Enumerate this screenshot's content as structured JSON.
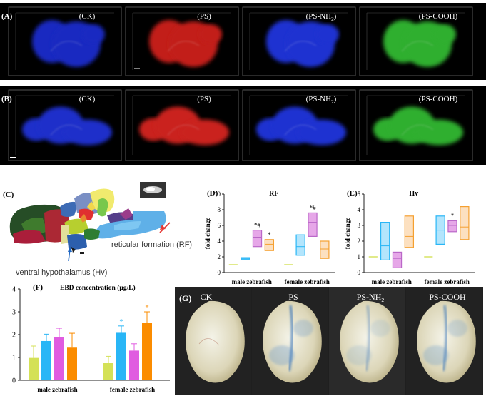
{
  "row_a": {
    "label": "(A)",
    "panels": [
      {
        "label": "(CK)",
        "color": "#1a2fd6"
      },
      {
        "label": "(PS)",
        "color": "#d8231e"
      },
      {
        "label": "(PS-NH",
        "sub": "2",
        "end": ")",
        "color": "#2337e8"
      },
      {
        "label": "(PS-COOH)",
        "color": "#36c236"
      }
    ]
  },
  "row_b": {
    "label": "(B)",
    "panels": [
      {
        "label": "(CK)",
        "color": "#2035e0"
      },
      {
        "label": "(PS)",
        "color": "#e02520"
      },
      {
        "label": "(PS-NH",
        "sub": "2",
        "end": ")",
        "color": "#2337e8"
      },
      {
        "label": "(PS-COOH)",
        "color": "#36c236"
      }
    ]
  },
  "panel_c": {
    "label": "(C)",
    "rf_label": "reticular formation (RF)",
    "hv_label": "ventral hypothalamus (Hv)"
  },
  "chart_data": [
    {
      "id": "D",
      "panel_label": "(D)",
      "type": "box",
      "title": "RF",
      "ylabel": "fold change",
      "ylim": [
        0,
        10
      ],
      "yticks": [
        0,
        2,
        4,
        6,
        8,
        10
      ],
      "categories": [
        "male zebrafish",
        "female zebrafish"
      ],
      "series_colors": [
        "#d4e157",
        "#29b6f6",
        "#ba68c8",
        "#f5a030"
      ],
      "fill_colors": [
        "#f0f4c3",
        "#b3e5fc",
        "#e6a7e8",
        "#fce0c0"
      ],
      "groups": [
        [
          {
            "low": 1.0,
            "high": 1.0,
            "median": 1.0,
            "annotation": ""
          },
          {
            "low": 1.7,
            "high": 1.9,
            "median": 1.8,
            "annotation": ""
          },
          {
            "low": 3.3,
            "high": 5.4,
            "median": 4.5,
            "annotation": "*#"
          },
          {
            "low": 2.8,
            "high": 4.2,
            "median": 3.6,
            "annotation": "*"
          }
        ],
        [
          {
            "low": 1.0,
            "high": 1.0,
            "median": 1.0,
            "annotation": ""
          },
          {
            "low": 2.2,
            "high": 4.8,
            "median": 3.3,
            "annotation": ""
          },
          {
            "low": 4.6,
            "high": 7.6,
            "median": 6.4,
            "annotation": "*#"
          },
          {
            "low": 1.8,
            "high": 4.0,
            "median": 3.0,
            "annotation": ""
          }
        ]
      ]
    },
    {
      "id": "E",
      "panel_label": "(E)",
      "type": "box",
      "title": "Hv",
      "ylabel": "fold change",
      "ylim": [
        0,
        5
      ],
      "yticks": [
        0,
        1,
        2,
        3,
        4,
        5
      ],
      "categories": [
        "male zebrafish",
        "female zebrafish"
      ],
      "series_colors": [
        "#d4e157",
        "#29b6f6",
        "#ba68c8",
        "#f5a030"
      ],
      "fill_colors": [
        "#f0f4c3",
        "#b3e5fc",
        "#e6a7e8",
        "#fce0c0"
      ],
      "groups": [
        [
          {
            "low": 1.0,
            "high": 1.0,
            "median": 1.0,
            "annotation": ""
          },
          {
            "low": 0.8,
            "high": 3.2,
            "median": 1.7,
            "annotation": ""
          },
          {
            "low": 0.3,
            "high": 1.3,
            "median": 0.9,
            "annotation": ""
          },
          {
            "low": 1.6,
            "high": 3.6,
            "median": 2.3,
            "annotation": ""
          }
        ],
        [
          {
            "low": 1.0,
            "high": 1.0,
            "median": 1.0,
            "annotation": ""
          },
          {
            "low": 1.8,
            "high": 3.6,
            "median": 2.7,
            "annotation": ""
          },
          {
            "low": 2.6,
            "high": 3.3,
            "median": 3.0,
            "annotation": "*"
          },
          {
            "low": 2.1,
            "high": 4.2,
            "median": 2.9,
            "annotation": ""
          }
        ]
      ]
    },
    {
      "id": "F",
      "panel_label": "(F)",
      "type": "bar",
      "title": "EBD concentration (μg/L)",
      "ylim": [
        0,
        4
      ],
      "yticks": [
        0,
        1,
        2,
        3,
        4
      ],
      "categories": [
        "male zebrafish",
        "female zebrafish"
      ],
      "series_colors": [
        "#d4e157",
        "#29b6f6",
        "#e05ce0",
        "#fb8c00"
      ],
      "groups": [
        [
          {
            "value": 0.98,
            "error": 0.52,
            "annotation": ""
          },
          {
            "value": 1.72,
            "error": 0.3,
            "annotation": ""
          },
          {
            "value": 1.9,
            "error": 0.38,
            "annotation": ""
          },
          {
            "value": 1.43,
            "error": 0.63,
            "annotation": ""
          }
        ],
        [
          {
            "value": 0.75,
            "error": 0.3,
            "annotation": ""
          },
          {
            "value": 2.08,
            "error": 0.3,
            "annotation": "*"
          },
          {
            "value": 1.3,
            "error": 0.3,
            "annotation": ""
          },
          {
            "value": 2.5,
            "error": 0.5,
            "annotation": "*"
          }
        ]
      ]
    }
  ],
  "panel_g": {
    "label": "(G)",
    "photos": [
      {
        "label": "CK",
        "dye": 0.0
      },
      {
        "label": "PS",
        "dye": 0.8
      },
      {
        "label": "PS-NH",
        "sub": "2",
        "dye": 0.45
      },
      {
        "label": "PS-COOH",
        "dye": 0.7
      }
    ]
  }
}
